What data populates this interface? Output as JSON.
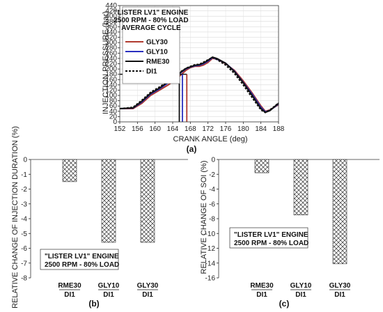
{
  "chart_data": [
    {
      "type": "line",
      "panel_label": "(a)",
      "xlabel": "CRANK ANGLE (deg)",
      "ylabel": "INJECTION PRESSURE (bar)",
      "xlim": [
        152,
        188
      ],
      "ylim": [
        0,
        440
      ],
      "xticks": [
        152,
        156,
        160,
        164,
        168,
        172,
        176,
        180,
        184,
        188
      ],
      "yticks": [
        0,
        20,
        40,
        60,
        80,
        100,
        120,
        140,
        160,
        180,
        200,
        220,
        240,
        260,
        280,
        300,
        320,
        340,
        360,
        380,
        400,
        420,
        440
      ],
      "legend_title": [
        "\"LISTER LV1\" ENGINE",
        "2500 RPM - 80% LOAD",
        "AVERAGE CYCLE"
      ],
      "legend_placement": "top-left",
      "series": [
        {
          "name": "GLY30",
          "color": "#b03a2e",
          "dash": "solid",
          "x": [
            152,
            155,
            157,
            159,
            161,
            163,
            165,
            166,
            167,
            168,
            169,
            170,
            171,
            172,
            173,
            174,
            176,
            178,
            180,
            182,
            184,
            185,
            186,
            187,
            188
          ],
          "y": [
            50,
            50,
            70,
            100,
            120,
            140,
            165,
            180,
            195,
            205,
            210,
            210,
            215,
            225,
            240,
            238,
            220,
            195,
            155,
            110,
            60,
            40,
            45,
            55,
            65
          ]
        },
        {
          "name": "GLY10",
          "color": "#2a2fbf",
          "dash": "solid",
          "x": [
            152,
            155,
            157,
            159,
            161,
            163,
            165,
            166,
            167,
            168,
            169,
            170,
            171,
            172,
            173,
            174,
            176,
            178,
            180,
            182,
            184,
            185,
            186,
            187,
            188
          ],
          "y": [
            50,
            52,
            75,
            105,
            125,
            148,
            175,
            188,
            200,
            207,
            212,
            214,
            220,
            230,
            243,
            238,
            222,
            192,
            150,
            105,
            55,
            38,
            43,
            55,
            68
          ]
        },
        {
          "name": "RME30",
          "color": "#111111",
          "dash": "solid",
          "x": [
            152,
            155,
            157,
            159,
            161,
            163,
            165,
            166,
            167,
            168,
            169,
            170,
            171,
            172,
            173,
            174,
            176,
            178,
            180,
            182,
            184,
            185,
            186,
            187,
            188
          ],
          "y": [
            50,
            53,
            78,
            108,
            128,
            152,
            178,
            190,
            202,
            208,
            214,
            216,
            223,
            233,
            245,
            240,
            222,
            190,
            148,
            100,
            50,
            36,
            42,
            56,
            70
          ]
        },
        {
          "name": "DI1",
          "color": "#111111",
          "dash": "dashed",
          "x": [
            152,
            155,
            157,
            159,
            161,
            163,
            165,
            166,
            167,
            168,
            169,
            170,
            171,
            172,
            173,
            174,
            176,
            178,
            180,
            182,
            184,
            185,
            186,
            187,
            188
          ],
          "y": [
            50,
            55,
            82,
            112,
            132,
            155,
            180,
            192,
            203,
            210,
            216,
            218,
            226,
            235,
            244,
            236,
            215,
            183,
            140,
            92,
            45,
            35,
            45,
            58,
            72
          ]
        }
      ],
      "markers": [
        {
          "color": "#111111",
          "x": 165.5,
          "y": 180
        },
        {
          "color": "#2a2fbf",
          "x": 166.2,
          "y": 180
        },
        {
          "color": "#b03a2e",
          "x": 167.2,
          "y": 180
        }
      ]
    },
    {
      "type": "bar",
      "panel_label": "(b)",
      "ylabel": "RELATIVE CHANGE OF INJECTION DURATION (%)",
      "ylim": [
        -8,
        0
      ],
      "yticks": [
        0,
        -1,
        -2,
        -3,
        -4,
        -5,
        -6,
        -7,
        -8
      ],
      "categories": [
        {
          "top": "RME30",
          "bottom": "DI1"
        },
        {
          "top": "GLY10",
          "bottom": "DI1"
        },
        {
          "top": "GLY30",
          "bottom": "DI1"
        }
      ],
      "values": [
        -1.5,
        -5.6,
        -5.6
      ],
      "annotation": [
        "\"LISTER LV1\" ENGINE",
        "2500 RPM - 80% LOAD"
      ]
    },
    {
      "type": "bar",
      "panel_label": "(c)",
      "ylabel": "RELATIVE CHANGE OF SOI (%)",
      "ylim": [
        -16,
        0
      ],
      "yticks": [
        0,
        -2,
        -4,
        -6,
        -8,
        -10,
        -12,
        -14,
        -16
      ],
      "categories": [
        {
          "top": "RME30",
          "bottom": "DI1"
        },
        {
          "top": "GLY10",
          "bottom": "DI1"
        },
        {
          "top": "GLY30",
          "bottom": "DI1"
        }
      ],
      "values": [
        -1.8,
        -7.5,
        -14.1
      ],
      "annotation": [
        "\"LISTER LV1\" ENGINE",
        "2500 RPM - 80% LOAD"
      ]
    }
  ]
}
